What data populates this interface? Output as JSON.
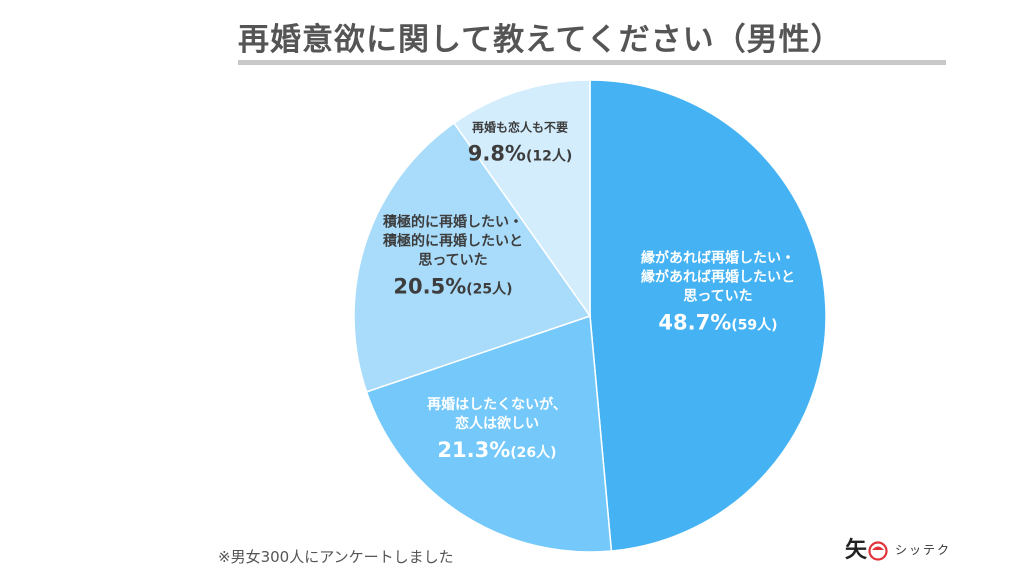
{
  "title": "再婚意欲に関して教えてください（男性）",
  "footnote": "※男女300人にアンケートしました",
  "logo": {
    "text": "シッテク"
  },
  "colors": {
    "title_rule": "#c8c8c8",
    "label_dark": "#3d3d3d",
    "label_light": "#ffffff"
  },
  "chart_data": {
    "type": "pie",
    "title": "再婚意欲に関して教えてください（男性）",
    "start": "12 o'clock",
    "direction": "clockwise",
    "slices": [
      {
        "label_lines": [
          "縁があれば再婚したい・",
          "縁があれば再婚したいと",
          "思っていた"
        ],
        "percent": 48.7,
        "percent_text": "48.7%",
        "count_text": "(59人)",
        "color": "#45b2f3",
        "label_color": "#ffffff"
      },
      {
        "label_lines": [
          "再婚はしたくないが、",
          "恋人は欲しい"
        ],
        "percent": 21.3,
        "percent_text": "21.3%",
        "count_text": "(26人)",
        "color": "#74c9fa",
        "label_color": "#ffffff"
      },
      {
        "label_lines": [
          "積極的に再婚したい・",
          "積極的に再婚したいと",
          "思っていた"
        ],
        "percent": 20.5,
        "percent_text": "20.5%",
        "count_text": "(25人)",
        "color": "#a9dcfb",
        "label_color": "#3d3d3d"
      },
      {
        "label_lines": [
          "再婚も恋人も不要"
        ],
        "percent": 9.8,
        "percent_text": "9.8%",
        "count_text": "(12人)",
        "color": "#d3edfd",
        "label_color": "#3d3d3d"
      }
    ]
  }
}
